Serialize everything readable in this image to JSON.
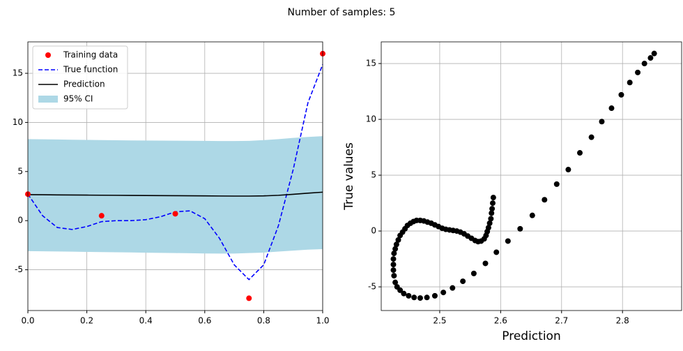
{
  "title": "Number of samples: 5",
  "chart_data": [
    {
      "type": "line",
      "xlim": [
        0,
        1
      ],
      "ylim": [
        -9.15,
        18.2
      ],
      "xticks": [
        {
          "value": 0,
          "label": "0.0"
        },
        0.2,
        0.4,
        0.6,
        0.8,
        {
          "value": 1,
          "label": "1.0"
        }
      ],
      "yticks": [
        -5,
        0,
        5,
        10,
        15
      ],
      "grid": true,
      "legend": "upper left",
      "series": [
        {
          "name": "Training data",
          "type": "scatter",
          "color": "#ff0000",
          "x": [
            0,
            0.25,
            0.5,
            0.75,
            1
          ],
          "values": [
            2.7,
            0.5,
            0.7,
            -7.9,
            17.0
          ]
        },
        {
          "name": "True function",
          "type": "line",
          "linestyle": "dashed",
          "color": "#0000ff",
          "x": [
            0,
            0.05,
            0.1,
            0.15,
            0.2,
            0.25,
            0.3,
            0.35,
            0.4,
            0.45,
            0.5,
            0.55,
            0.6,
            0.65,
            0.7,
            0.75,
            0.8,
            0.85,
            0.9,
            0.95,
            1
          ],
          "values": [
            2.7,
            0.5,
            -0.7,
            -0.9,
            -0.6,
            -0.1,
            0.0,
            0.0,
            0.1,
            0.4,
            0.9,
            1.0,
            0.2,
            -1.8,
            -4.5,
            -6.0,
            -4.5,
            -0.5,
            5.2,
            12.0,
            15.9
          ]
        },
        {
          "name": "Prediction",
          "type": "line",
          "color": "#000000",
          "x": [
            0,
            0.05,
            0.1,
            0.15,
            0.2,
            0.25,
            0.3,
            0.35,
            0.4,
            0.45,
            0.5,
            0.55,
            0.6,
            0.65,
            0.7,
            0.75,
            0.8,
            0.85,
            0.9,
            0.95,
            1
          ],
          "values": [
            2.65,
            2.64,
            2.62,
            2.61,
            2.6,
            2.59,
            2.58,
            2.57,
            2.56,
            2.55,
            2.54,
            2.53,
            2.52,
            2.51,
            2.5,
            2.5,
            2.52,
            2.58,
            2.68,
            2.8,
            2.9
          ]
        },
        {
          "name": "95% CI",
          "type": "area",
          "color": "#add8e6",
          "x": [
            0,
            0.05,
            0.1,
            0.15,
            0.2,
            0.25,
            0.3,
            0.35,
            0.4,
            0.45,
            0.5,
            0.55,
            0.6,
            0.65,
            0.7,
            0.75,
            0.8,
            0.85,
            0.9,
            0.95,
            1
          ],
          "values": [
            8.3,
            8.28,
            8.26,
            8.24,
            8.22,
            8.2,
            8.18,
            8.17,
            8.16,
            8.15,
            8.14,
            8.13,
            8.12,
            8.1,
            8.1,
            8.12,
            8.2,
            8.3,
            8.42,
            8.52,
            8.6
          ],
          "lower": [
            -3.1,
            -3.12,
            -3.14,
            -3.16,
            -3.18,
            -3.2,
            -3.22,
            -3.24,
            -3.26,
            -3.28,
            -3.3,
            -3.32,
            -3.34,
            -3.35,
            -3.35,
            -3.3,
            -3.25,
            -3.15,
            -3.05,
            -2.95,
            -2.9
          ]
        }
      ]
    },
    {
      "type": "scatter",
      "xlabel": "Prediction",
      "ylabel": "True values",
      "xlim": [
        2.404,
        2.897
      ],
      "ylim": [
        -7.12,
        16.94
      ],
      "xticks": [
        2.5,
        2.6,
        2.7,
        2.8
      ],
      "yticks": [
        -5,
        0,
        5,
        10,
        15
      ],
      "grid": true,
      "series": [
        {
          "color": "#000000",
          "x": [
            2.852,
            2.846,
            2.836,
            2.825,
            2.812,
            2.798,
            2.782,
            2.766,
            2.749,
            2.73,
            2.711,
            2.692,
            2.672,
            2.652,
            2.632,
            2.612,
            2.593,
            2.575,
            2.556,
            2.538,
            2.521,
            2.506,
            2.492,
            2.479,
            2.468,
            2.458,
            2.449,
            2.441,
            2.435,
            2.43,
            2.427,
            2.425,
            2.424,
            2.424,
            2.424,
            2.425,
            2.427,
            2.429,
            2.432,
            2.435,
            2.439,
            2.443,
            2.447,
            2.452,
            2.457,
            2.462,
            2.468,
            2.474,
            2.48,
            2.486,
            2.492,
            2.498,
            2.504,
            2.51,
            2.516,
            2.522,
            2.528,
            2.534,
            2.54,
            2.546,
            2.552,
            2.558,
            2.563,
            2.568,
            2.573,
            2.576,
            2.578,
            2.58,
            2.582,
            2.584,
            2.585,
            2.586,
            2.587,
            2.588
          ],
          "values": [
            15.9,
            15.5,
            15.0,
            14.2,
            13.3,
            12.2,
            11.0,
            9.8,
            8.4,
            7.0,
            5.5,
            4.2,
            2.8,
            1.4,
            0.2,
            -0.9,
            -1.9,
            -2.9,
            -3.8,
            -4.5,
            -5.1,
            -5.5,
            -5.8,
            -5.95,
            -6.0,
            -5.95,
            -5.8,
            -5.6,
            -5.3,
            -5.0,
            -4.6,
            -4.0,
            -3.5,
            -3.0,
            -2.5,
            -2.0,
            -1.6,
            -1.2,
            -0.8,
            -0.4,
            -0.1,
            0.2,
            0.5,
            0.7,
            0.85,
            0.95,
            0.95,
            0.9,
            0.8,
            0.7,
            0.55,
            0.4,
            0.25,
            0.15,
            0.1,
            0.05,
            0.0,
            -0.1,
            -0.25,
            -0.45,
            -0.65,
            -0.85,
            -0.95,
            -0.9,
            -0.7,
            -0.4,
            -0.05,
            0.3,
            0.7,
            1.1,
            1.6,
            2.0,
            2.5,
            3.0
          ]
        }
      ]
    }
  ]
}
